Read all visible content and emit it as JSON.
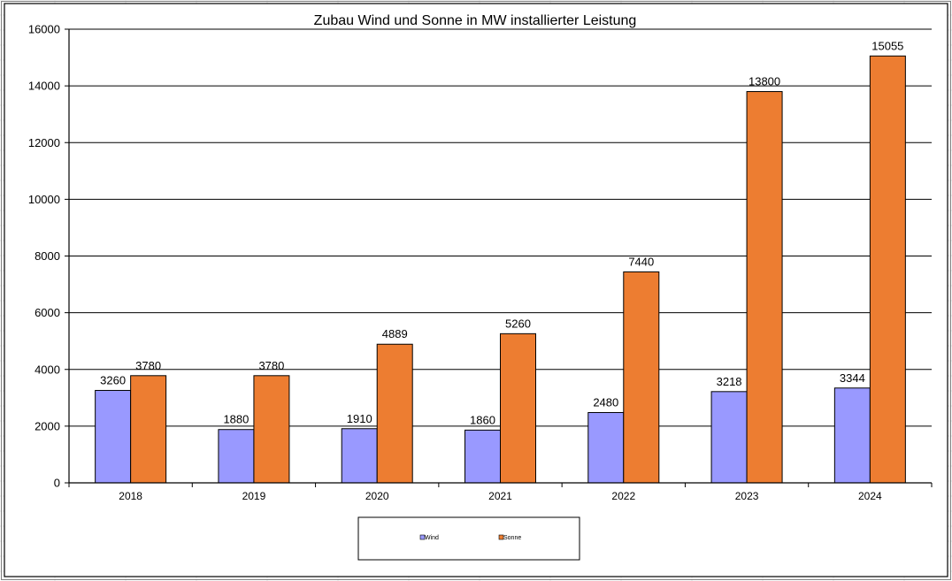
{
  "chart_data": {
    "type": "bar",
    "title": "Zubau Wind und Sonne in MW installierter Leistung",
    "xlabel": "",
    "ylabel": "",
    "categories": [
      "2018",
      "2019",
      "2020",
      "2021",
      "2022",
      "2023",
      "2024"
    ],
    "series": [
      {
        "name": "Wind",
        "color": "#9999ff",
        "values": [
          3260,
          1880,
          1910,
          1860,
          2480,
          3218,
          3344
        ]
      },
      {
        "name": "Sonne",
        "color": "#ed7d31",
        "values": [
          3780,
          3780,
          4889,
          5260,
          7440,
          13800,
          15055
        ]
      }
    ],
    "ylim": [
      0,
      16000
    ],
    "yticks": [
      0,
      2000,
      4000,
      6000,
      8000,
      10000,
      12000,
      14000,
      16000
    ],
    "grid": true,
    "legend_position": "bottom"
  }
}
